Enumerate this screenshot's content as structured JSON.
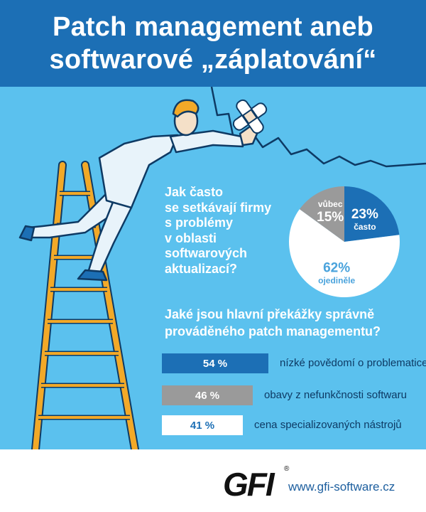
{
  "header": {
    "title_line1": "Patch management aneb",
    "title_line2": "softwarové „záplatování“"
  },
  "question1": {
    "lines": [
      "Jak často",
      "se setkávají firmy",
      "s problémy",
      "v oblasti",
      "softwarových",
      "aktualizací?"
    ]
  },
  "question2": {
    "lines": [
      "Jaké jsou hlavní překážky správně",
      "prováděného patch managementu?"
    ]
  },
  "chart_data": [
    {
      "type": "pie",
      "slices": [
        {
          "label": "často",
          "value": 23,
          "display": "23%",
          "color": "#1c6fb5",
          "text_color": "#ffffff"
        },
        {
          "label": "ojediněle",
          "value": 62,
          "display": "62%",
          "color": "#ffffff",
          "text_color": "#4aa3dc"
        },
        {
          "label": "vůbec",
          "value": 15,
          "display": "15%",
          "color": "#9a9a9a",
          "text_color": "#ffffff"
        }
      ]
    },
    {
      "type": "bar",
      "orientation": "horizontal",
      "categories": [
        "nízké povědomí o problematice",
        "obavy z nefunkčnosti softwaru",
        "cena specializovaných nástrojů"
      ],
      "values": [
        54,
        46,
        41
      ],
      "display": [
        "54 %",
        "46 %",
        "41 %"
      ],
      "colors": [
        "#1c6fb5",
        "#9a9a9a",
        "#ffffff"
      ],
      "text_colors": [
        "#ffffff",
        "#ffffff",
        "#1c6fb5"
      ],
      "unit": "%"
    }
  ],
  "footer": {
    "logo": "GFI",
    "registered": "®",
    "url": "www.gfi-software.cz"
  },
  "colors": {
    "header_bg": "#1c6fb5",
    "main_bg": "#5bc1ee",
    "ladder": "#f2a928"
  },
  "icons": [
    "ladder-illustration",
    "person-illustration",
    "bandage-icon",
    "crack-line"
  ]
}
